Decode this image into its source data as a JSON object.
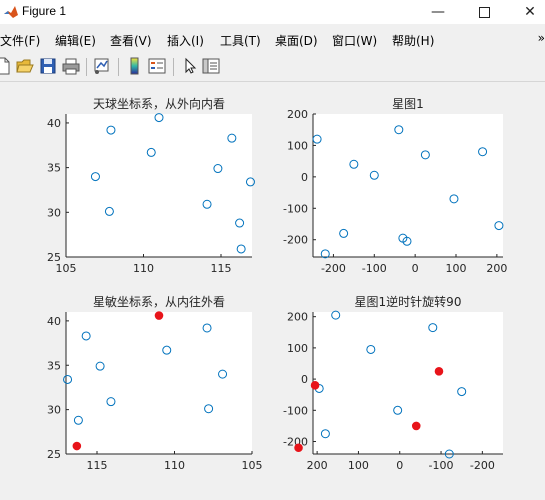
{
  "window": {
    "title": "Figure 1"
  },
  "menu": [
    "文件(F)",
    "编辑(E)",
    "查看(V)",
    "插入(I)",
    "工具(T)",
    "桌面(D)",
    "窗口(W)",
    "帮助(H)"
  ],
  "menu_more": "»",
  "toolbar": [
    "new-figure",
    "open-file",
    "save",
    "print",
    "link-plot",
    "colorbar",
    "legend",
    "pointer",
    "property-editor"
  ],
  "chart_data": [
    {
      "type": "scatter",
      "title": "天球坐标系，从外向内看",
      "xlim": [
        105,
        117
      ],
      "ylim": [
        25,
        41
      ],
      "xticks": [
        105,
        110,
        115
      ],
      "yticks": [
        25,
        30,
        35,
        40
      ],
      "x_reversed": false,
      "marker_color": "#0072bd",
      "x": [
        107.9,
        111.0,
        106.9,
        110.5,
        115.7,
        114.8,
        116.9,
        107.8,
        114.1,
        116.2,
        116.3
      ],
      "y": [
        39.2,
        40.6,
        34.0,
        36.7,
        38.3,
        34.9,
        33.4,
        30.1,
        30.9,
        28.8,
        25.9
      ],
      "highlight": []
    },
    {
      "type": "scatter",
      "title": "星图1",
      "xlim": [
        -250,
        215
      ],
      "ylim": [
        -255,
        200
      ],
      "xticks": [
        -200,
        -100,
        0,
        100,
        200
      ],
      "yticks": [
        -200,
        -100,
        0,
        100,
        200
      ],
      "x_reversed": false,
      "marker_color": "#0072bd",
      "x": [
        -240,
        -40,
        165,
        -150,
        -100,
        25,
        -175,
        -30,
        -20,
        95,
        205,
        -220
      ],
      "y": [
        120,
        150,
        80,
        40,
        5,
        70,
        -180,
        -195,
        -205,
        -70,
        -155,
        -245
      ],
      "highlight": []
    },
    {
      "type": "scatter",
      "title": "星敏坐标系，从内往外看",
      "xlim": [
        117,
        105
      ],
      "ylim": [
        25,
        41
      ],
      "xticks": [
        115,
        110,
        105
      ],
      "yticks": [
        25,
        30,
        35,
        40
      ],
      "x_reversed": true,
      "marker_color": "#0072bd",
      "x": [
        107.9,
        111.0,
        106.9,
        110.5,
        115.7,
        114.8,
        116.9,
        107.8,
        114.1,
        116.2,
        116.3
      ],
      "y": [
        39.2,
        40.6,
        34.0,
        36.7,
        38.3,
        34.9,
        33.4,
        30.1,
        30.9,
        28.8,
        25.9
      ],
      "highlight": [
        1,
        10
      ]
    },
    {
      "type": "scatter",
      "title": "星图1逆时针旋转90",
      "xlim": [
        210,
        -250
      ],
      "ylim": [
        -240,
        215
      ],
      "xticks": [
        200,
        100,
        0,
        -100,
        -200
      ],
      "yticks": [
        -200,
        -100,
        0,
        100,
        200
      ],
      "x_reversed": true,
      "marker_color": "#0072bd",
      "x": [
        -120,
        -150,
        -80,
        -40,
        5,
        -95,
        180,
        195,
        205,
        70,
        155,
        245
      ],
      "y": [
        -240,
        -40,
        165,
        -150,
        -100,
        25,
        -175,
        -30,
        -20,
        95,
        205,
        -220
      ],
      "highlight": [
        3,
        5,
        8,
        11
      ]
    }
  ]
}
